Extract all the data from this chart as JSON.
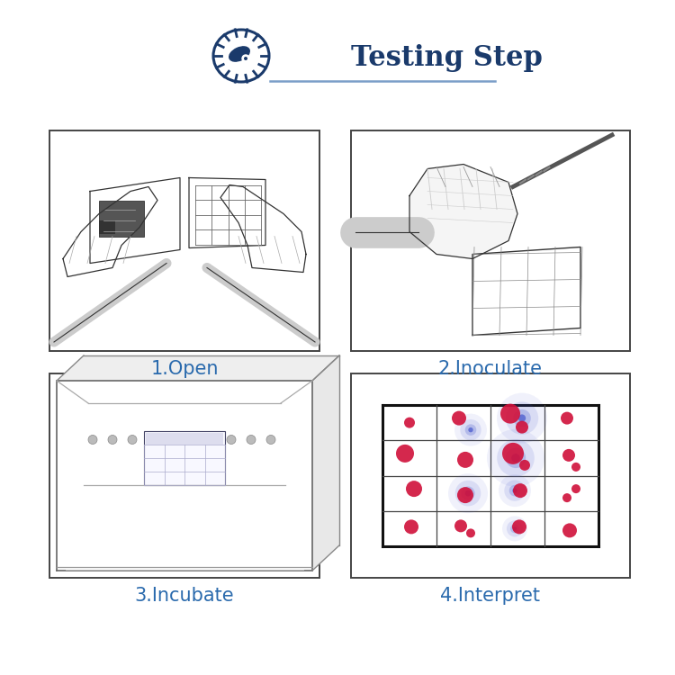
{
  "title": "Testing Step",
  "title_color": "#1a3a6b",
  "title_fontsize": 22,
  "background_color": "#ffffff",
  "step_labels": [
    "1.Open",
    "2.Inoculate",
    "3.Incubate",
    "4.Interpret"
  ],
  "label_color": "#2a6aad",
  "label_fontsize": 15,
  "box_color": "#555555",
  "header_line_color": "#7a9ec8",
  "gear_color": "#1a3a6b",
  "red_dot_color": "#d0103a",
  "blue_dot_color": "#4455cc",
  "line_color": "#333333",
  "gray_color": "#888888"
}
